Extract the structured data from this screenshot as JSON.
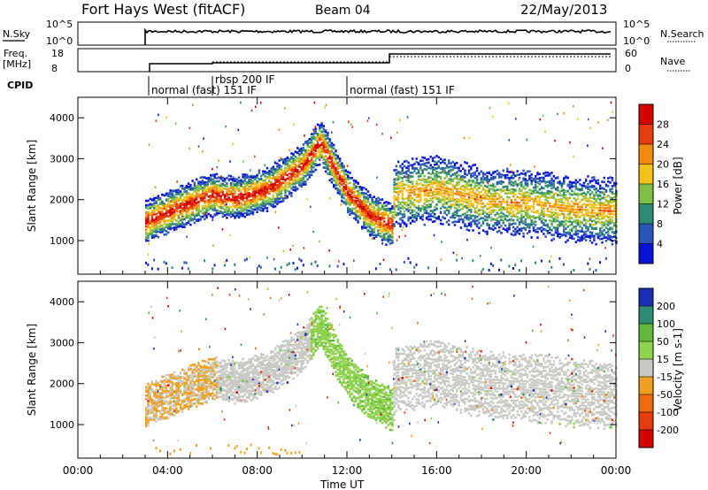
{
  "header": {
    "station": "Fort Hays West (fitACF)",
    "beam": "Beam 04",
    "date": "22/May/2013"
  },
  "panels": {
    "nsky": {
      "label": "N.Sky",
      "tick_hi": "10^5",
      "tick_lo": "10^0",
      "right_label": "N.Search",
      "right_hi": "10^5",
      "right_lo": "10^0"
    },
    "freq": {
      "label_top": "Freq.",
      "label_bottom": "[MHz]",
      "tick_hi": "18",
      "tick_lo": "8",
      "right_label": "Nave",
      "right_hi": "60",
      "right_lo": "0"
    },
    "cpid": {
      "label": "CPID",
      "modes": [
        "normal (fast) 151 IF",
        "rbsp 200 IF",
        "normal (fast) 151 IF"
      ]
    }
  },
  "chart_data": [
    {
      "type": "heatmap",
      "name": "power",
      "ylabel": "Slant Range [km]",
      "xlabel": "Time UT",
      "xlim": [
        0,
        24
      ],
      "ylim": [
        180,
        4500
      ],
      "y_ticks": [
        1000,
        2000,
        3000,
        4000
      ],
      "x_tick_labels": [
        "00:00",
        "04:00",
        "08:00",
        "12:00",
        "16:00",
        "20:00",
        "00:00"
      ],
      "colorbar": {
        "label": "Power [dB]",
        "ticks": [
          "4",
          "8",
          "12",
          "16",
          "20",
          "24",
          "28"
        ],
        "colors": [
          "#0a14d8",
          "#2a56b8",
          "#2f8a74",
          "#7fbf45",
          "#f2c21a",
          "#f08a10",
          "#e83a0c",
          "#d50000"
        ]
      },
      "echo_band": {
        "start_hour": 3.0,
        "gap_hour": 14.0,
        "end_hour": 24.0,
        "center_km": [
          [
            3.0,
            1500
          ],
          [
            5.0,
            1950
          ],
          [
            6.0,
            2150
          ],
          [
            7.0,
            2050
          ],
          [
            8.5,
            2300
          ],
          [
            10.0,
            2850
          ],
          [
            10.8,
            3450
          ],
          [
            12.0,
            2200
          ],
          [
            13.0,
            1650
          ],
          [
            14.0,
            1400
          ],
          [
            14.1,
            2150
          ],
          [
            16.0,
            2300
          ],
          [
            18.0,
            2000
          ],
          [
            20.0,
            1950
          ],
          [
            22.0,
            1800
          ],
          [
            24.0,
            1750
          ]
        ]
      }
    },
    {
      "type": "heatmap",
      "name": "velocity",
      "ylabel": "Slant Range [km]",
      "xlabel": "Time UT",
      "xlim": [
        0,
        24
      ],
      "ylim": [
        180,
        4500
      ],
      "y_ticks": [
        1000,
        2000,
        3000,
        4000
      ],
      "x_tick_labels": [
        "00:00",
        "04:00",
        "08:00",
        "12:00",
        "16:00",
        "20:00",
        "00:00"
      ],
      "colorbar": {
        "label": "Velocity [m s-1]",
        "ticks": [
          "200",
          "100",
          "50",
          "15",
          "-15",
          "-50",
          "-100",
          "-200"
        ],
        "colors": [
          "#1a2fb8",
          "#2f8a74",
          "#62b83a",
          "#8fd24d",
          "#c9c9c4",
          "#f0a020",
          "#f06a10",
          "#e83a0c",
          "#d50000"
        ]
      }
    }
  ],
  "xaxis": {
    "title": "Time UT",
    "labels": [
      "00:00",
      "04:00",
      "08:00",
      "12:00",
      "16:00",
      "20:00",
      "00:00"
    ]
  }
}
